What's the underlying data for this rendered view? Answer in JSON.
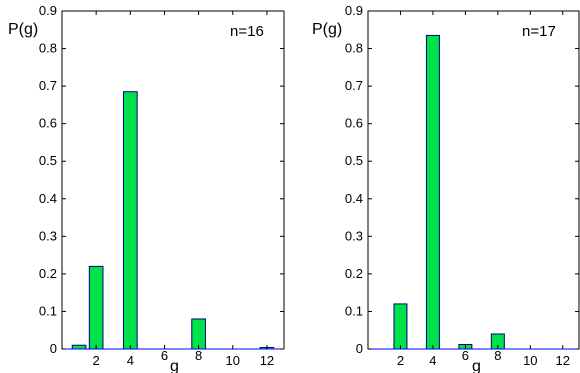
{
  "chart_data": [
    {
      "type": "bar",
      "title": "",
      "xlabel": "g",
      "ylabel": "P(g)",
      "annotation": "n=16",
      "xlim": [
        0,
        13
      ],
      "ylim": [
        0,
        0.9
      ],
      "x": [
        1,
        2,
        3,
        4,
        5,
        6,
        7,
        8,
        9,
        10,
        11,
        12
      ],
      "values": [
        0.01,
        0.22,
        0.0,
        0.685,
        0.0,
        0.0,
        0.0,
        0.08,
        0.0,
        0.0,
        0.0,
        0.004
      ],
      "x_ticks": [
        "2",
        "4",
        "6",
        "8",
        "10",
        "12"
      ],
      "y_ticks": [
        "0",
        "0.1",
        "0.2",
        "0.3",
        "0.4",
        "0.5",
        "0.6",
        "0.7",
        "0.8",
        "0.9"
      ],
      "bar_color": "#00e24a",
      "edge_color": "#000080",
      "axis_color": "#000000",
      "grid": false
    },
    {
      "type": "bar",
      "title": "",
      "xlabel": "g",
      "ylabel": "P(g)",
      "annotation": "n=17",
      "xlim": [
        0,
        13
      ],
      "ylim": [
        0,
        0.9
      ],
      "x": [
        1,
        2,
        3,
        4,
        5,
        6,
        7,
        8,
        9,
        10,
        11,
        12
      ],
      "values": [
        0.0,
        0.12,
        0.0,
        0.835,
        0.0,
        0.012,
        0.0,
        0.04,
        0.0,
        0.0,
        0.0,
        0.0
      ],
      "x_ticks": [
        "2",
        "4",
        "6",
        "8",
        "10",
        "12"
      ],
      "y_ticks": [
        "0",
        "0.1",
        "0.2",
        "0.3",
        "0.4",
        "0.5",
        "0.6",
        "0.7",
        "0.8",
        "0.9"
      ],
      "bar_color": "#00e24a",
      "edge_color": "#000080",
      "axis_color": "#000000",
      "grid": false
    }
  ]
}
